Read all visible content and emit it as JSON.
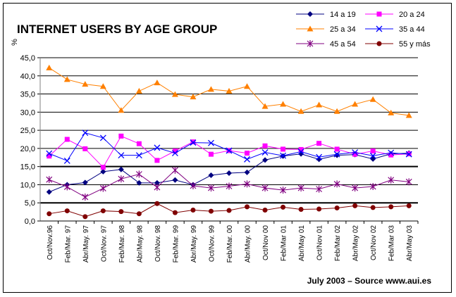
{
  "chart_data": {
    "type": "line",
    "title": "INTERNET USERS BY AGE GROUP",
    "ylabel": "%",
    "xlabel": "",
    "ylim": [
      0,
      45
    ],
    "yticks": [
      "0,0",
      "5,0",
      "10,0",
      "15,0",
      "20,0",
      "25,0",
      "30,0",
      "35,0",
      "40,0",
      "45,0"
    ],
    "ytick_values": [
      0,
      5,
      10,
      15,
      20,
      25,
      30,
      35,
      40,
      45
    ],
    "grid": "horizontal",
    "legend_position": "top-right",
    "source": "July 2003 – Source www.aui.es",
    "x": [
      "Oct/Nov.96",
      "Feb/Mar. 97",
      "Abr/May. 97",
      "Oct/Nov. 97",
      "Feb/Mar. 98",
      "Abr/May. 98",
      "Oct/Nov. 98",
      "Feb/Mar. 99",
      "Abr/May. 99",
      "Oct/Nov. 99",
      "Feb/Mar. 00",
      "Abr/May. 00",
      "Oct/Nov 00",
      "Feb/Mar 01",
      "Abr/May 01",
      "Oct/Nov 01",
      "Feb/Mar 02",
      "Abr/May 02",
      "Oct/Nov 02",
      "Feb/Mar 03",
      "Abr/May 03"
    ],
    "series": [
      {
        "name": "14 a 19",
        "color": "#000080",
        "marker": "diamond",
        "values": [
          8.0,
          10.0,
          10.6,
          13.6,
          14.2,
          10.5,
          10.5,
          11.3,
          10.0,
          12.6,
          13.2,
          13.4,
          16.8,
          17.9,
          18.5,
          17.0,
          18.1,
          18.3,
          17.1,
          18.5,
          18.7
        ]
      },
      {
        "name": "20 a 24",
        "color": "#ff00ff",
        "marker": "square",
        "values": [
          17.9,
          22.5,
          19.9,
          14.8,
          23.4,
          21.3,
          16.7,
          19.3,
          21.8,
          18.4,
          19.4,
          18.7,
          20.7,
          19.8,
          19.7,
          21.4,
          19.8,
          18.4,
          19.3,
          18.2,
          18.5
        ]
      },
      {
        "name": "25 a 34",
        "color": "#ff8000",
        "marker": "triangle",
        "values": [
          42.2,
          39.0,
          37.7,
          37.1,
          30.5,
          35.8,
          38.1,
          34.9,
          34.2,
          36.3,
          35.8,
          37.1,
          31.6,
          32.2,
          30.2,
          32.0,
          30.2,
          32.2,
          33.5,
          29.8,
          29.1
        ]
      },
      {
        "name": "35 a 44",
        "color": "#0000ff",
        "marker": "x",
        "values": [
          18.6,
          16.6,
          24.3,
          22.9,
          18.1,
          18.1,
          20.2,
          18.7,
          21.6,
          21.5,
          19.4,
          17.0,
          18.9,
          18.0,
          19.1,
          17.6,
          18.4,
          18.9,
          18.0,
          18.8,
          18.4
        ]
      },
      {
        "name": "45 a 54",
        "color": "#800080",
        "marker": "star",
        "values": [
          11.4,
          9.4,
          6.6,
          9.0,
          11.6,
          12.9,
          9.3,
          14.0,
          9.7,
          9.1,
          9.6,
          10.2,
          9.1,
          8.5,
          9.1,
          8.8,
          10.2,
          9.1,
          9.5,
          11.3,
          10.8
        ]
      },
      {
        "name": "55 y más",
        "color": "#800000",
        "marker": "circle",
        "values": [
          2.0,
          2.8,
          1.2,
          2.8,
          2.6,
          2.0,
          4.8,
          2.3,
          3.0,
          2.7,
          2.9,
          3.9,
          3.0,
          3.8,
          3.2,
          3.3,
          3.6,
          4.2,
          3.7,
          3.9,
          4.2
        ]
      }
    ]
  }
}
